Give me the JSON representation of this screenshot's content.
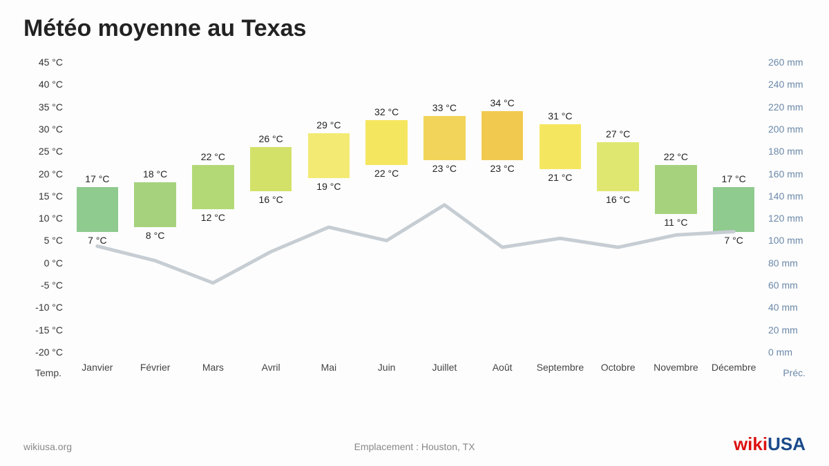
{
  "title": "Météo moyenne au Texas",
  "location_label": "Emplacement : Houston, TX",
  "source": "wikiusa.org",
  "logo": {
    "part1": "wiki",
    "part2": "USA"
  },
  "chart": {
    "type": "bar+line",
    "background_color": "#fdfdfd",
    "temp_axis": {
      "label": "Temp.",
      "unit": "°C",
      "min": -20,
      "max": 45,
      "step": 5,
      "text_color": "#333333"
    },
    "precip_axis": {
      "label": "Préc.",
      "unit": "mm",
      "min": 0,
      "max": 260,
      "step": 20,
      "text_color": "#6a88a8"
    },
    "months": [
      "Janvier",
      "Février",
      "Mars",
      "Avril",
      "Mai",
      "Juin",
      "Juillet",
      "Août",
      "Septembre",
      "Octobre",
      "Novembre",
      "Décembre"
    ],
    "bars": [
      {
        "low": 7,
        "high": 17,
        "color": "#8fca8f"
      },
      {
        "low": 8,
        "high": 18,
        "color": "#a6d27d"
      },
      {
        "low": 12,
        "high": 22,
        "color": "#b3d977"
      },
      {
        "low": 16,
        "high": 26,
        "color": "#d3e169"
      },
      {
        "low": 19,
        "high": 29,
        "color": "#f3ea74"
      },
      {
        "low": 22,
        "high": 32,
        "color": "#f5e65f"
      },
      {
        "low": 23,
        "high": 33,
        "color": "#f3d45a"
      },
      {
        "low": 23,
        "high": 34,
        "color": "#f1c94f"
      },
      {
        "low": 21,
        "high": 31,
        "color": "#f5e65f"
      },
      {
        "low": 16,
        "high": 27,
        "color": "#dfe770"
      },
      {
        "low": 11,
        "high": 22,
        "color": "#a6d27d"
      },
      {
        "low": 7,
        "high": 17,
        "color": "#8fca8f"
      }
    ],
    "bar_width_ratio": 0.72,
    "precip_line": {
      "values": [
        95,
        82,
        62,
        90,
        112,
        100,
        132,
        94,
        102,
        94,
        105,
        108
      ],
      "color": "#c6cdd3",
      "width": 5
    },
    "label_fontsize": 14,
    "title_fontsize": 34
  }
}
